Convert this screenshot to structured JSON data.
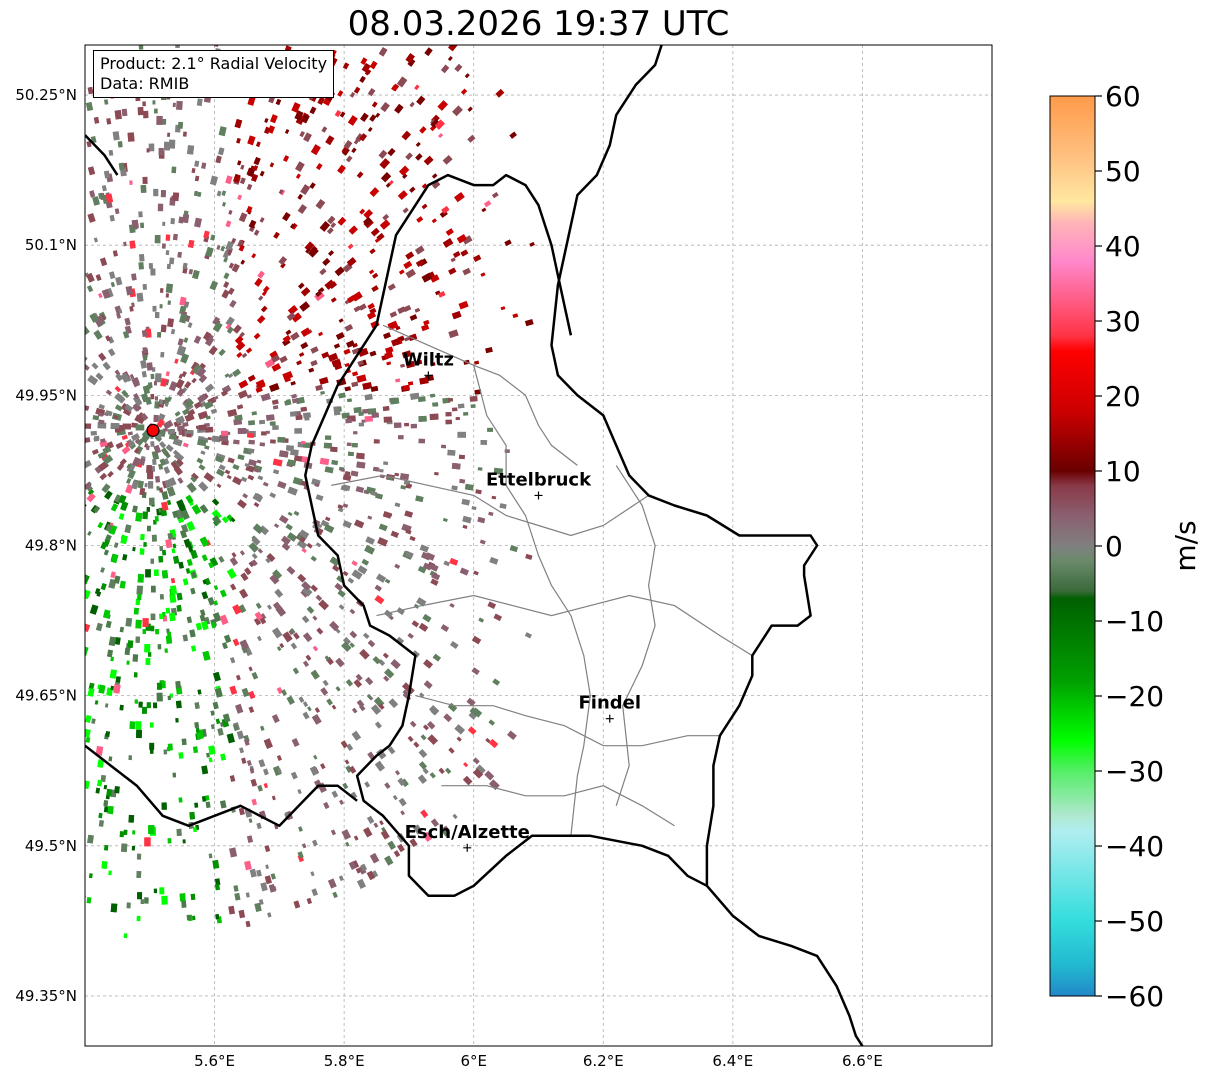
{
  "title": "08.03.2026 19:37 UTC",
  "info": {
    "product": "Product: 2.1° Radial Velocity",
    "source": "Data: RMIB"
  },
  "map": {
    "lon_range": [
      5.4,
      6.8
    ],
    "lat_range": [
      49.3,
      50.3
    ],
    "lat_ticks": [
      {
        "value": 50.25,
        "label": "50.25°N"
      },
      {
        "value": 50.1,
        "label": "50.1°N"
      },
      {
        "value": 49.95,
        "label": "49.95°N"
      },
      {
        "value": 49.8,
        "label": "49.8°N"
      },
      {
        "value": 49.65,
        "label": "49.65°N"
      },
      {
        "value": 49.5,
        "label": "49.5°N"
      },
      {
        "value": 49.35,
        "label": "49.35°N"
      }
    ],
    "lon_ticks": [
      {
        "value": 5.6,
        "label": "5.6°E"
      },
      {
        "value": 5.8,
        "label": "5.8°E"
      },
      {
        "value": 6.0,
        "label": "6°E"
      },
      {
        "value": 6.2,
        "label": "6.2°E"
      },
      {
        "value": 6.4,
        "label": "6.4°E"
      },
      {
        "value": 6.6,
        "label": "6.6°E"
      }
    ],
    "radar_site": {
      "lon": 5.505,
      "lat": 49.915,
      "color": "#ff0000"
    },
    "cities": [
      {
        "name": "Wiltz",
        "lon": 5.93,
        "lat": 49.97
      },
      {
        "name": "Ettelbruck",
        "lon": 6.1,
        "lat": 49.85
      },
      {
        "name": "Findel",
        "lon": 6.21,
        "lat": 49.627
      },
      {
        "name": "Esch/Alzette",
        "lon": 5.99,
        "lat": 49.498
      }
    ],
    "luxembourg_border": [
      [
        6.29,
        50.3
      ],
      [
        6.28,
        50.28
      ],
      [
        6.25,
        50.26
      ],
      [
        6.22,
        50.23
      ],
      [
        6.21,
        50.2
      ],
      [
        6.19,
        50.17
      ],
      [
        6.16,
        50.15
      ],
      [
        6.15,
        50.12
      ],
      [
        6.14,
        50.09
      ],
      [
        6.13,
        50.06
      ],
      [
        6.125,
        50.03
      ],
      [
        6.12,
        50.0
      ],
      [
        6.13,
        49.97
      ],
      [
        6.16,
        49.95
      ],
      [
        6.2,
        49.93
      ],
      [
        6.22,
        49.9
      ],
      [
        6.24,
        49.87
      ],
      [
        6.27,
        49.85
      ],
      [
        6.31,
        49.84
      ],
      [
        6.36,
        49.83
      ],
      [
        6.41,
        49.81
      ],
      [
        6.47,
        49.81
      ],
      [
        6.52,
        49.81
      ],
      [
        6.53,
        49.8
      ],
      [
        6.51,
        49.78
      ],
      [
        6.51,
        49.77
      ],
      [
        6.52,
        49.73
      ],
      [
        6.5,
        49.72
      ],
      [
        6.46,
        49.72
      ],
      [
        6.43,
        49.69
      ],
      [
        6.43,
        49.67
      ],
      [
        6.41,
        49.64
      ],
      [
        6.38,
        49.61
      ],
      [
        6.37,
        49.58
      ],
      [
        6.37,
        49.54
      ],
      [
        6.36,
        49.5
      ],
      [
        6.36,
        49.46
      ],
      [
        6.33,
        49.47
      ],
      [
        6.3,
        49.49
      ],
      [
        6.26,
        49.5
      ],
      [
        6.18,
        49.51
      ],
      [
        6.13,
        49.51
      ],
      [
        6.09,
        49.51
      ],
      [
        6.05,
        49.49
      ],
      [
        6.0,
        49.46
      ],
      [
        5.97,
        49.45
      ],
      [
        5.93,
        49.45
      ],
      [
        5.9,
        49.47
      ],
      [
        5.9,
        49.5
      ],
      [
        5.86,
        49.53
      ],
      [
        5.83,
        49.545
      ],
      [
        5.82,
        49.57
      ],
      [
        5.85,
        49.59
      ],
      [
        5.87,
        49.6
      ],
      [
        5.89,
        49.62
      ],
      [
        5.9,
        49.65
      ],
      [
        5.91,
        49.69
      ],
      [
        5.87,
        49.71
      ],
      [
        5.84,
        49.72
      ],
      [
        5.83,
        49.74
      ],
      [
        5.8,
        49.76
      ],
      [
        5.79,
        49.79
      ],
      [
        5.76,
        49.81
      ],
      [
        5.75,
        49.84
      ],
      [
        5.74,
        49.87
      ],
      [
        5.75,
        49.9
      ],
      [
        5.77,
        49.93
      ],
      [
        5.79,
        49.96
      ],
      [
        5.82,
        49.99
      ],
      [
        5.85,
        50.02
      ],
      [
        5.86,
        50.05
      ],
      [
        5.87,
        50.08
      ],
      [
        5.88,
        50.11
      ],
      [
        5.91,
        50.14
      ],
      [
        5.93,
        50.16
      ],
      [
        5.96,
        50.17
      ],
      [
        6.0,
        50.16
      ],
      [
        6.03,
        50.16
      ],
      [
        6.05,
        50.17
      ],
      [
        6.08,
        50.16
      ],
      [
        6.1,
        50.14
      ],
      [
        6.12,
        50.1
      ],
      [
        6.13,
        50.07
      ],
      [
        6.14,
        50.04
      ],
      [
        6.15,
        50.01
      ]
    ],
    "france_border": [
      [
        5.4,
        49.6
      ],
      [
        5.44,
        49.58
      ],
      [
        5.48,
        49.56
      ],
      [
        5.52,
        49.53
      ],
      [
        5.56,
        49.52
      ],
      [
        5.6,
        49.53
      ],
      [
        5.64,
        49.54
      ],
      [
        5.67,
        49.53
      ],
      [
        5.7,
        49.52
      ],
      [
        5.73,
        49.54
      ],
      [
        5.76,
        49.56
      ],
      [
        5.79,
        49.56
      ],
      [
        5.82,
        49.545
      ]
    ],
    "germany_south": [
      [
        6.36,
        49.46
      ],
      [
        6.4,
        49.43
      ],
      [
        6.44,
        49.41
      ],
      [
        6.49,
        49.4
      ],
      [
        6.53,
        49.39
      ],
      [
        6.56,
        49.36
      ],
      [
        6.58,
        49.33
      ],
      [
        6.59,
        49.31
      ],
      [
        6.6,
        49.3
      ]
    ],
    "belgium_dutch": [
      [
        5.4,
        50.21
      ],
      [
        5.43,
        50.19
      ],
      [
        5.45,
        50.17
      ]
    ],
    "cantons": [
      [
        [
          5.86,
          50.02
        ],
        [
          5.93,
          50.0
        ],
        [
          6.0,
          49.98
        ],
        [
          6.04,
          49.97
        ],
        [
          6.08,
          49.95
        ],
        [
          6.1,
          49.92
        ],
        [
          6.12,
          49.9
        ],
        [
          6.16,
          49.88
        ]
      ],
      [
        [
          5.78,
          49.86
        ],
        [
          5.86,
          49.87
        ],
        [
          5.93,
          49.86
        ],
        [
          6.0,
          49.85
        ],
        [
          6.05,
          49.83
        ],
        [
          6.1,
          49.82
        ],
        [
          6.15,
          49.81
        ],
        [
          6.2,
          49.82
        ],
        [
          6.27,
          49.85
        ]
      ],
      [
        [
          5.85,
          49.73
        ],
        [
          5.92,
          49.74
        ],
        [
          6.0,
          49.75
        ],
        [
          6.06,
          49.74
        ],
        [
          6.12,
          49.73
        ],
        [
          6.18,
          49.74
        ],
        [
          6.24,
          49.75
        ],
        [
          6.31,
          49.74
        ],
        [
          6.38,
          49.71
        ],
        [
          6.43,
          49.69
        ]
      ],
      [
        [
          5.91,
          49.65
        ],
        [
          5.97,
          49.64
        ],
        [
          6.03,
          49.64
        ],
        [
          6.08,
          49.63
        ],
        [
          6.14,
          49.62
        ],
        [
          6.2,
          49.6
        ],
        [
          6.26,
          49.6
        ],
        [
          6.33,
          49.61
        ],
        [
          6.38,
          49.61
        ]
      ],
      [
        [
          5.95,
          49.56
        ],
        [
          6.02,
          49.56
        ],
        [
          6.08,
          49.55
        ],
        [
          6.14,
          49.55
        ],
        [
          6.2,
          49.56
        ],
        [
          6.26,
          49.54
        ],
        [
          6.31,
          49.52
        ]
      ],
      [
        [
          6.0,
          49.98
        ],
        [
          6.02,
          49.93
        ],
        [
          6.05,
          49.9
        ],
        [
          6.05,
          49.86
        ],
        [
          6.08,
          49.83
        ],
        [
          6.1,
          49.79
        ],
        [
          6.12,
          49.76
        ],
        [
          6.15,
          49.73
        ],
        [
          6.17,
          49.69
        ],
        [
          6.18,
          49.65
        ],
        [
          6.17,
          49.6
        ],
        [
          6.16,
          49.57
        ],
        [
          6.15,
          49.51
        ]
      ],
      [
        [
          6.22,
          49.88
        ],
        [
          6.26,
          49.84
        ],
        [
          6.28,
          49.8
        ],
        [
          6.27,
          49.76
        ],
        [
          6.28,
          49.72
        ],
        [
          6.26,
          49.68
        ],
        [
          6.23,
          49.64
        ],
        [
          6.24,
          49.58
        ],
        [
          6.22,
          49.54
        ]
      ]
    ]
  },
  "colorbar": {
    "min": -60,
    "max": 60,
    "unit": "m/s",
    "tick_labels": [
      "60",
      "50",
      "40",
      "30",
      "20",
      "10",
      "0",
      "−10",
      "−20",
      "−30",
      "−40",
      "−50",
      "−60"
    ],
    "stops": [
      {
        "v": 60,
        "c": "#ff9a4a"
      },
      {
        "v": 52,
        "c": "#ffc080"
      },
      {
        "v": 46,
        "c": "#ffe7a0"
      },
      {
        "v": 43,
        "c": "#ffb3b8"
      },
      {
        "v": 38,
        "c": "#ff88cc"
      },
      {
        "v": 33,
        "c": "#ff5e88"
      },
      {
        "v": 28,
        "c": "#ff3344"
      },
      {
        "v": 26,
        "c": "#ff0000"
      },
      {
        "v": 18,
        "c": "#cc0000"
      },
      {
        "v": 10,
        "c": "#6a0000"
      },
      {
        "v": 8,
        "c": "#8a3a48"
      },
      {
        "v": 4,
        "c": "#8a6070"
      },
      {
        "v": 0,
        "c": "#808080"
      },
      {
        "v": -2,
        "c": "#6a8a6a"
      },
      {
        "v": -6,
        "c": "#3a6a3a"
      },
      {
        "v": -7,
        "c": "#006000"
      },
      {
        "v": -18,
        "c": "#00a000"
      },
      {
        "v": -26,
        "c": "#00ff00"
      },
      {
        "v": -30,
        "c": "#55ee66"
      },
      {
        "v": -36,
        "c": "#b0e8d0"
      },
      {
        "v": -38,
        "c": "#b0eef0"
      },
      {
        "v": -50,
        "c": "#33dddd"
      },
      {
        "v": -56,
        "c": "#22b8d0"
      },
      {
        "v": -60,
        "c": "#2288c8"
      }
    ]
  },
  "palette": {
    "velocity_colors": [
      "#7a0000",
      "#a00000",
      "#c80000",
      "#8c4a55",
      "#8a6070",
      "#808080",
      "#5f7f5f",
      "#4d7a4d",
      "#006000",
      "#009000",
      "#00c800",
      "#00ff00",
      "#ff3344",
      "#ff5e88"
    ]
  }
}
